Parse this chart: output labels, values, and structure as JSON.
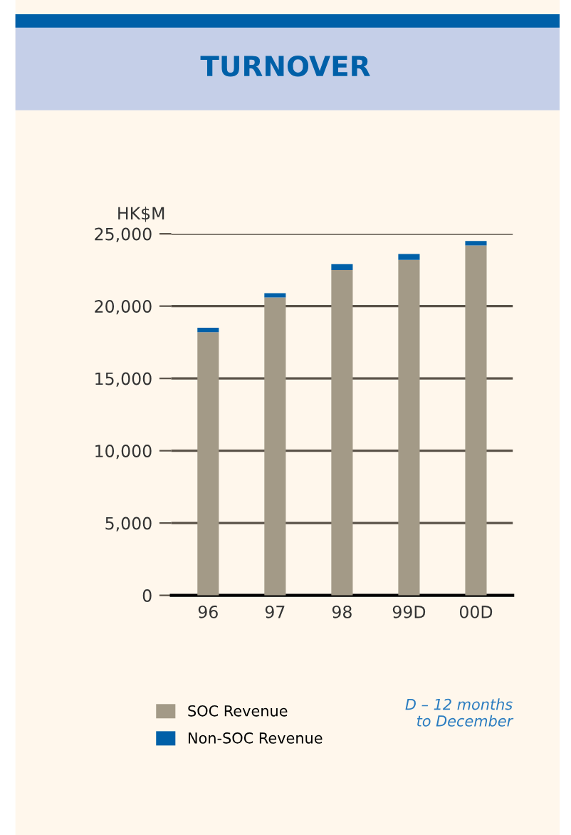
{
  "chart_data": {
    "type": "bar",
    "title": "TURNOVER",
    "ylabel": "HK$M",
    "stacked": true,
    "categories": [
      "96",
      "97",
      "98",
      "99D",
      "00D"
    ],
    "series": [
      {
        "name": "SOC Revenue",
        "color": "#a39a87",
        "values": [
          18200,
          20600,
          22500,
          23200,
          24200
        ]
      },
      {
        "name": "Non-SOC Revenue",
        "color": "#0060a8",
        "values": [
          300,
          300,
          400,
          400,
          300
        ]
      }
    ],
    "ylim": [
      0,
      25000
    ],
    "yticks": [
      {
        "value": 0,
        "label": "0"
      },
      {
        "value": 5000,
        "label": "5,000"
      },
      {
        "value": 10000,
        "label": "10,000"
      },
      {
        "value": 15000,
        "label": "15,000"
      },
      {
        "value": 20000,
        "label": "20,000"
      },
      {
        "value": 25000,
        "label": "25,000"
      }
    ],
    "grid": "y",
    "legend": "bottom left",
    "annotations": [
      "D – 12 months\nto December"
    ]
  }
}
